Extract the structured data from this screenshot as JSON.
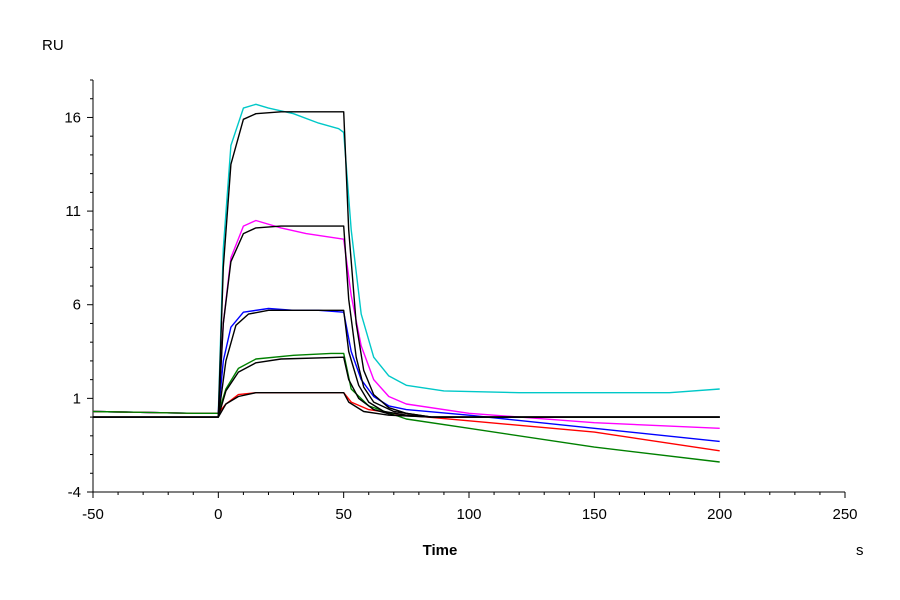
{
  "chart_data": {
    "type": "line",
    "xlabel": "Time",
    "x_unit": "s",
    "ylabel": "RU",
    "xlim": [
      -50,
      250
    ],
    "ylim": [
      -4,
      18
    ],
    "x_ticks": [
      -50,
      0,
      50,
      100,
      150,
      200,
      250
    ],
    "y_ticks": [
      -4,
      1,
      6,
      11,
      16
    ],
    "grid": false,
    "legend": "none",
    "series": [
      {
        "color": "#00c8c8",
        "points": [
          [
            -50,
            0.3
          ],
          [
            -10,
            0.2
          ],
          [
            0,
            0.2
          ],
          [
            2,
            9
          ],
          [
            5,
            14.5
          ],
          [
            10,
            16.5
          ],
          [
            15,
            16.7
          ],
          [
            20,
            16.5
          ],
          [
            30,
            16.2
          ],
          [
            40,
            15.7
          ],
          [
            48,
            15.4
          ],
          [
            50,
            15.2
          ],
          [
            53,
            10
          ],
          [
            57,
            5.5
          ],
          [
            62,
            3.2
          ],
          [
            68,
            2.2
          ],
          [
            75,
            1.7
          ],
          [
            90,
            1.4
          ],
          [
            120,
            1.3
          ],
          [
            150,
            1.3
          ],
          [
            180,
            1.3
          ],
          [
            200,
            1.5
          ]
        ]
      },
      {
        "color": "#ff00ff",
        "points": [
          [
            -50,
            0.3
          ],
          [
            -10,
            0.2
          ],
          [
            0,
            0.2
          ],
          [
            2,
            5
          ],
          [
            5,
            8.5
          ],
          [
            10,
            10.2
          ],
          [
            15,
            10.5
          ],
          [
            25,
            10.1
          ],
          [
            35,
            9.8
          ],
          [
            45,
            9.6
          ],
          [
            50,
            9.5
          ],
          [
            53,
            6.5
          ],
          [
            57,
            3.8
          ],
          [
            62,
            2
          ],
          [
            68,
            1.1
          ],
          [
            75,
            0.7
          ],
          [
            100,
            0.2
          ],
          [
            150,
            -0.3
          ],
          [
            200,
            -0.6
          ]
        ]
      },
      {
        "color": "#0000ff",
        "points": [
          [
            -50,
            0.3
          ],
          [
            -10,
            0.2
          ],
          [
            0,
            0.2
          ],
          [
            2,
            3
          ],
          [
            5,
            4.8
          ],
          [
            10,
            5.6
          ],
          [
            20,
            5.8
          ],
          [
            30,
            5.7
          ],
          [
            40,
            5.7
          ],
          [
            50,
            5.6
          ],
          [
            53,
            3.5
          ],
          [
            57,
            2
          ],
          [
            62,
            1.1
          ],
          [
            68,
            0.6
          ],
          [
            75,
            0.4
          ],
          [
            100,
            0.1
          ],
          [
            150,
            -0.6
          ],
          [
            200,
            -1.3
          ]
        ]
      },
      {
        "color": "#ff0000",
        "points": [
          [
            -50,
            0.3
          ],
          [
            -10,
            0.2
          ],
          [
            0,
            0.2
          ],
          [
            3,
            0.7
          ],
          [
            8,
            1.2
          ],
          [
            15,
            1.3
          ],
          [
            30,
            1.3
          ],
          [
            50,
            1.3
          ],
          [
            53,
            0.8
          ],
          [
            60,
            0.4
          ],
          [
            75,
            0.1
          ],
          [
            100,
            -0.2
          ],
          [
            150,
            -0.8
          ],
          [
            200,
            -1.8
          ]
        ]
      },
      {
        "color": "#008000",
        "points": [
          [
            -50,
            0.3
          ],
          [
            -10,
            0.2
          ],
          [
            0,
            0.2
          ],
          [
            3,
            1.5
          ],
          [
            8,
            2.6
          ],
          [
            15,
            3.1
          ],
          [
            30,
            3.3
          ],
          [
            45,
            3.4
          ],
          [
            50,
            3.4
          ],
          [
            53,
            1.5
          ],
          [
            60,
            0.6
          ],
          [
            75,
            -0.1
          ],
          [
            100,
            -0.6
          ],
          [
            150,
            -1.6
          ],
          [
            200,
            -2.4
          ]
        ]
      },
      {
        "color": "#000000",
        "points": [
          [
            -50,
            0
          ],
          [
            0,
            0
          ],
          [
            2,
            8
          ],
          [
            5,
            13.5
          ],
          [
            10,
            15.9
          ],
          [
            15,
            16.2
          ],
          [
            25,
            16.3
          ],
          [
            50,
            16.3
          ],
          [
            52,
            10
          ],
          [
            55,
            5
          ],
          [
            58,
            2.5
          ],
          [
            62,
            1.2
          ],
          [
            68,
            0.5
          ],
          [
            75,
            0.2
          ],
          [
            85,
            0
          ],
          [
            200,
            0
          ]
        ]
      },
      {
        "color": "#000000",
        "points": [
          [
            -50,
            0
          ],
          [
            0,
            0
          ],
          [
            2,
            5
          ],
          [
            5,
            8.3
          ],
          [
            10,
            9.8
          ],
          [
            15,
            10.1
          ],
          [
            25,
            10.2
          ],
          [
            50,
            10.2
          ],
          [
            52,
            6.3
          ],
          [
            55,
            3.2
          ],
          [
            58,
            1.6
          ],
          [
            62,
            0.8
          ],
          [
            70,
            0.3
          ],
          [
            85,
            0
          ],
          [
            200,
            0
          ]
        ]
      },
      {
        "color": "#000000",
        "points": [
          [
            -50,
            0
          ],
          [
            0,
            0
          ],
          [
            3,
            3
          ],
          [
            7,
            4.9
          ],
          [
            12,
            5.5
          ],
          [
            20,
            5.7
          ],
          [
            50,
            5.7
          ],
          [
            52,
            3.5
          ],
          [
            56,
            1.7
          ],
          [
            60,
            0.8
          ],
          [
            66,
            0.3
          ],
          [
            75,
            0.1
          ],
          [
            85,
            0
          ],
          [
            200,
            0
          ]
        ]
      },
      {
        "color": "#000000",
        "points": [
          [
            -50,
            0
          ],
          [
            0,
            0
          ],
          [
            3,
            1.4
          ],
          [
            8,
            2.4
          ],
          [
            15,
            2.9
          ],
          [
            25,
            3.1
          ],
          [
            50,
            3.2
          ],
          [
            52,
            2
          ],
          [
            56,
            1
          ],
          [
            62,
            0.4
          ],
          [
            70,
            0.1
          ],
          [
            85,
            0
          ],
          [
            200,
            0
          ]
        ]
      },
      {
        "color": "#000000",
        "points": [
          [
            -50,
            0
          ],
          [
            0,
            0
          ],
          [
            3,
            0.7
          ],
          [
            8,
            1.1
          ],
          [
            15,
            1.3
          ],
          [
            50,
            1.3
          ],
          [
            52,
            0.8
          ],
          [
            58,
            0.3
          ],
          [
            68,
            0.1
          ],
          [
            85,
            0
          ],
          [
            200,
            0
          ]
        ]
      }
    ]
  }
}
